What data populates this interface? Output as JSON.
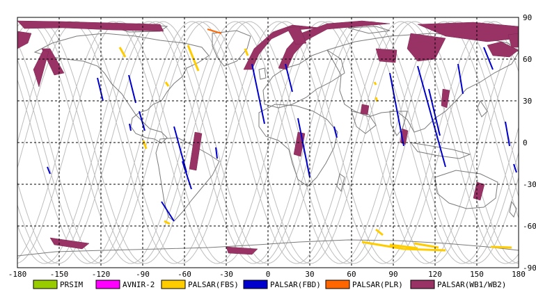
{
  "map": {
    "lon_ticks": [
      "-180",
      "-150",
      "-120",
      "-90",
      "-60",
      "-30",
      "0",
      "30",
      "60",
      "90",
      "120",
      "150",
      "180"
    ],
    "lat_ticks": [
      "90",
      "60",
      "30",
      "0",
      "-30",
      "-60",
      "-90"
    ],
    "lon_range": [
      -180,
      180
    ],
    "lat_range": [
      -90,
      90
    ],
    "grid": "dashed",
    "legend": [
      {
        "label": "PRSIM",
        "color": "#99cc00"
      },
      {
        "label": "AVNIR-2",
        "color": "#ff00ff"
      },
      {
        "label": "PALSAR(FBS)",
        "color": "#ffcc00"
      },
      {
        "label": "PALSAR(FBD)",
        "color": "#0000cc"
      },
      {
        "label": "PALSAR(PLR)",
        "color": "#ff6600"
      },
      {
        "label": "PALSAR(WB1/WB2)",
        "color": "#993366"
      }
    ]
  }
}
